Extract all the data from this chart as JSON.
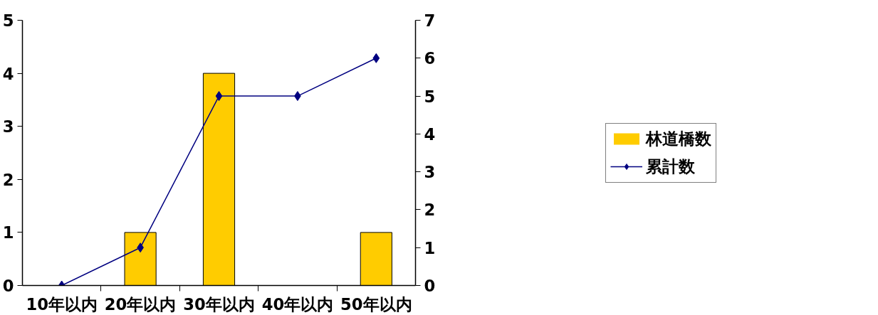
{
  "chart_data": {
    "type": "bar",
    "categories": [
      "10年以内",
      "20年以内",
      "30年以内",
      "40年以内",
      "50年以内"
    ],
    "series": [
      {
        "name": "林道橋数",
        "color": "#ffcc00",
        "values": [
          0,
          1,
          4,
          0,
          1
        ]
      },
      {
        "name": "累計数",
        "type": "line",
        "axis": "y2",
        "color": "#000080",
        "marker": "diamond",
        "values": [
          0,
          1,
          5,
          5,
          6
        ]
      }
    ],
    "ylim": [
      0,
      5
    ],
    "yticks": [
      0,
      1,
      2,
      3,
      4,
      5
    ],
    "y2lim": [
      0,
      7
    ],
    "y2ticks": [
      0,
      1,
      2,
      3,
      4,
      5,
      6,
      7
    ],
    "grid": false,
    "legend": "right"
  }
}
